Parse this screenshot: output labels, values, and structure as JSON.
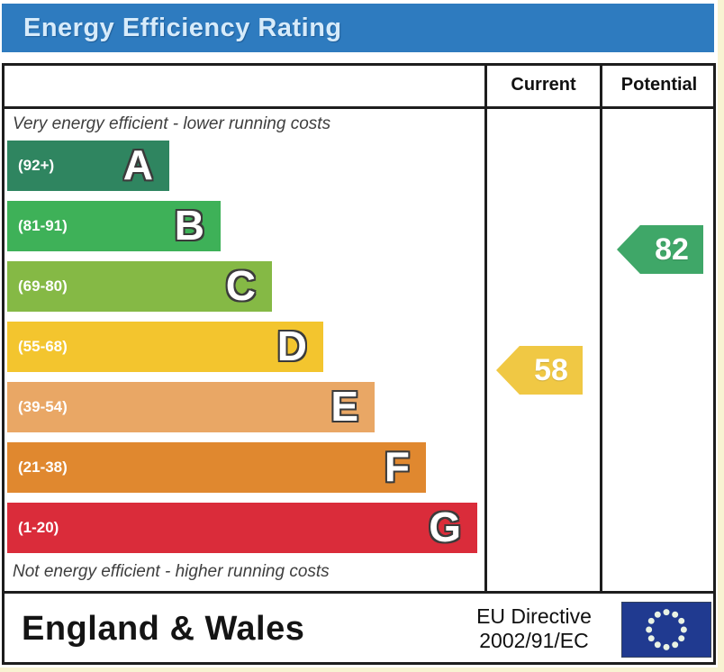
{
  "page": {
    "title": "Energy Efficiency Rating"
  },
  "table": {
    "header": {
      "current": "Current",
      "potential": "Potential"
    },
    "top_note": "Very energy efficient - lower running costs",
    "bottom_note": "Not energy efficient - higher running costs"
  },
  "chart_data": {
    "type": "bar",
    "title": "Energy Efficiency Rating",
    "categories": [
      "A",
      "B",
      "C",
      "D",
      "E",
      "F",
      "G"
    ],
    "bands": [
      {
        "letter": "A",
        "range_label": "(92+)",
        "range": [
          92,
          100
        ],
        "color": "#2f8560"
      },
      {
        "letter": "B",
        "range_label": "(81-91)",
        "range": [
          81,
          91
        ],
        "color": "#3eb158"
      },
      {
        "letter": "C",
        "range_label": "(69-80)",
        "range": [
          69,
          80
        ],
        "color": "#85b945"
      },
      {
        "letter": "D",
        "range_label": "(55-68)",
        "range": [
          55,
          68
        ],
        "color": "#f3c52e"
      },
      {
        "letter": "E",
        "range_label": "(39-54)",
        "range": [
          39,
          54
        ],
        "color": "#e9a765"
      },
      {
        "letter": "F",
        "range_label": "(21-38)",
        "range": [
          21,
          38
        ],
        "color": "#e0882f"
      },
      {
        "letter": "G",
        "range_label": "(1-20)",
        "range": [
          1,
          20
        ],
        "color": "#da2c3a"
      }
    ],
    "markers": {
      "current": {
        "value": 58,
        "band": "D",
        "color": "#f0c844",
        "column": "Current"
      },
      "potential": {
        "value": 82,
        "band": "B",
        "color": "#3fa768",
        "column": "Potential"
      }
    },
    "legend_position": "none",
    "grid": false
  },
  "footer": {
    "region": "England & Wales",
    "directive_line1": "EU Directive",
    "directive_line2": "2002/91/EC",
    "flag_icon": "eu-flag-icon"
  },
  "colors": {
    "title_bar": "#2e7bbf",
    "title_text": "#d7ebfa",
    "border": "#1d1d1d",
    "eu_flag_blue": "#203a90",
    "eu_flag_stars": "#e9f2e4"
  }
}
